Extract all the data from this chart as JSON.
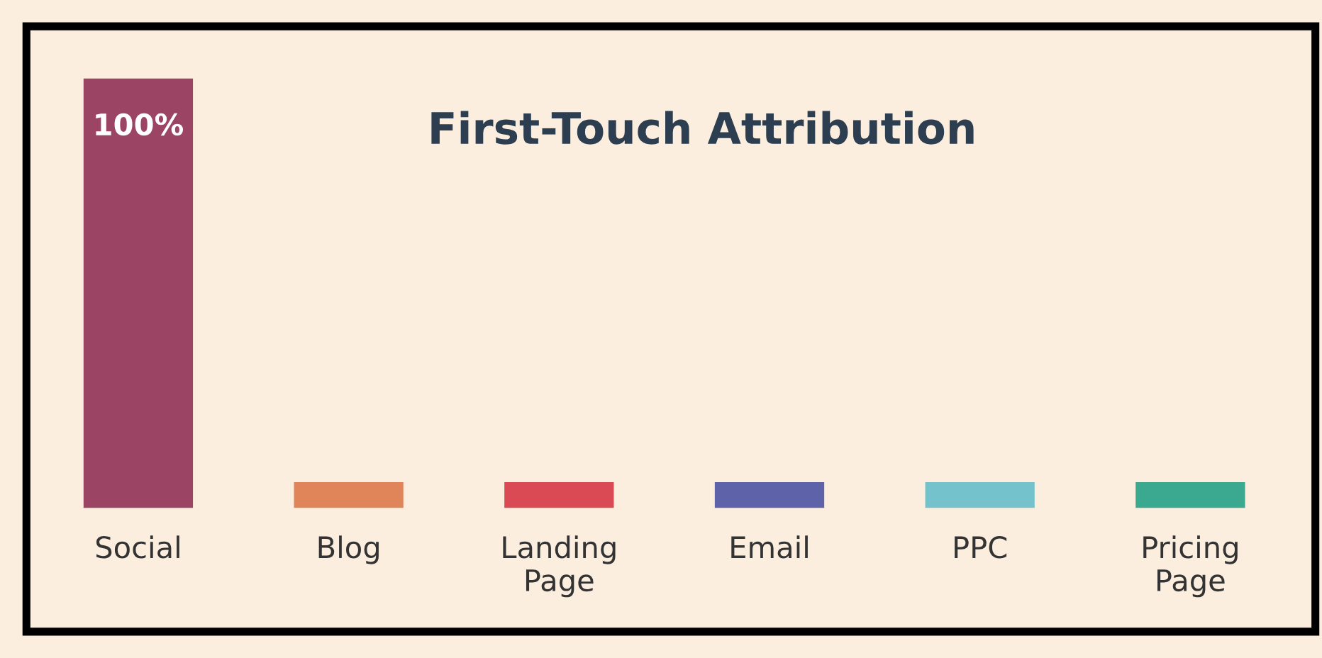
{
  "chart_data": {
    "type": "bar",
    "title": "First-Touch Attribution",
    "categories": [
      "Social",
      "Blog",
      "Landing\nPage",
      "Email",
      "PPC",
      "Pricing\nPage"
    ],
    "values": [
      100,
      6,
      6,
      6,
      6,
      6
    ],
    "colors": [
      "#9b4463",
      "#e0845a",
      "#d94a55",
      "#5e62a8",
      "#74c3cc",
      "#3aa98f"
    ],
    "value_labels": [
      "100%",
      null,
      null,
      null,
      null,
      null
    ],
    "grid": false,
    "legend": false
  }
}
